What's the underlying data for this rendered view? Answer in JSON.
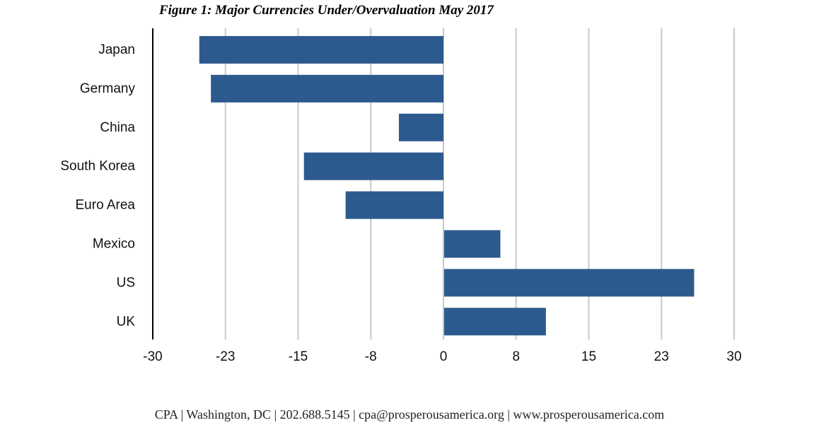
{
  "chart_data": {
    "type": "bar",
    "orientation": "horizontal",
    "title": "Figure 1: Major Currencies Under/Overvaluation May 2017",
    "categories": [
      "Japan",
      "Germany",
      "China",
      "South Korea",
      "Euro Area",
      "Mexico",
      "US",
      "UK"
    ],
    "values": [
      -25.2,
      -24.0,
      -4.6,
      -14.4,
      -10.1,
      5.8,
      25.8,
      10.5
    ],
    "xlim": [
      -30,
      30
    ],
    "x_ticks": [
      -30,
      -22.5,
      -15,
      -7.5,
      0,
      7.5,
      15,
      22.5,
      30
    ],
    "x_tick_labels": [
      "-30",
      "-23",
      "-15",
      "-8",
      "0",
      "8",
      "15",
      "23",
      "30"
    ],
    "xlabel": "",
    "ylabel": "",
    "grid": "vertical",
    "legend": "none",
    "bar_color": "#2d5a8e",
    "grid_color": "#c8c8c8"
  },
  "footer": {
    "text": "CPA | Washington, DC |  202.688.5145 | cpa@prosperousamerica.org | www.prosperousamerica.com"
  }
}
